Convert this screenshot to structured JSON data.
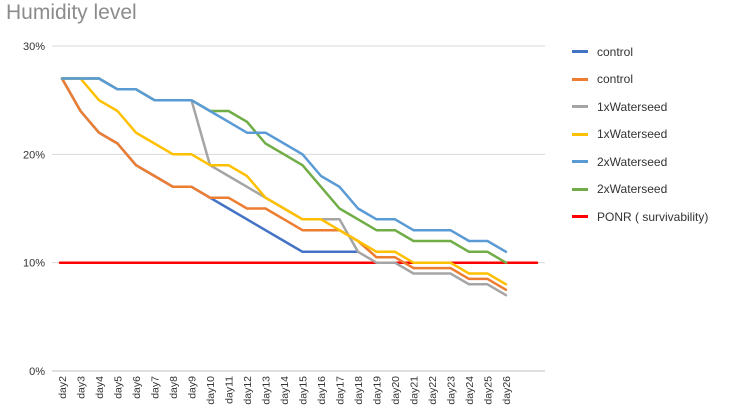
{
  "chart_data": {
    "type": "line",
    "title": "Humidity level",
    "xlabel": "",
    "ylabel": "",
    "ylim": [
      0,
      30
    ],
    "y_ticks": [
      "30%",
      "20%",
      "10%",
      "0%"
    ],
    "y_tick_values": [
      30,
      20,
      10,
      0
    ],
    "grid": "horizontal",
    "legend_position": "right",
    "categories": [
      "day2",
      "day3",
      "day4",
      "day5",
      "day6",
      "day7",
      "day8",
      "day9",
      "day10",
      "day11",
      "day12",
      "day13",
      "day14",
      "day15",
      "day16",
      "day17",
      "day18",
      "day19",
      "day20",
      "day21",
      "day22",
      "day23",
      "day24",
      "day25",
      "day26"
    ],
    "series": [
      {
        "name": "control",
        "color": "#4472c4",
        "values": [
          27,
          24,
          22,
          21,
          19,
          18,
          17,
          17,
          16,
          15,
          14,
          13,
          12,
          11,
          11,
          11,
          11,
          null,
          null,
          null,
          null,
          null,
          null,
          null,
          null
        ]
      },
      {
        "name": "control",
        "color": "#ed7d31",
        "values": [
          27,
          24,
          22,
          21,
          19,
          18,
          17,
          17,
          16,
          16,
          15,
          15,
          14,
          13,
          13,
          13,
          12,
          10.5,
          10.5,
          9.5,
          9.5,
          9.5,
          8.5,
          8.5,
          7.5
        ]
      },
      {
        "name": "1xWaterseed",
        "color": "#a5a5a5",
        "values": [
          27,
          27,
          27,
          26,
          26,
          25,
          25,
          25,
          19,
          18,
          17,
          16,
          15,
          14,
          14,
          14,
          11,
          10,
          10,
          9,
          9,
          9,
          8,
          8,
          7
        ]
      },
      {
        "name": "1xWaterseed",
        "color": "#ffc000",
        "values": [
          27,
          27,
          25,
          24,
          22,
          21,
          20,
          20,
          19,
          19,
          18,
          16,
          15,
          14,
          14,
          13,
          12,
          11,
          11,
          10,
          10,
          10,
          9,
          9,
          8
        ]
      },
      {
        "name": "2xWaterseed",
        "color": "#5b9bd5",
        "values": [
          27,
          27,
          27,
          26,
          26,
          25,
          25,
          25,
          24,
          23,
          22,
          22,
          21,
          20,
          18,
          17,
          15,
          14,
          14,
          13,
          13,
          13,
          12,
          12,
          11
        ]
      },
      {
        "name": "2xWaterseed",
        "color": "#70ad47",
        "values": [
          27,
          27,
          27,
          26,
          26,
          25,
          25,
          25,
          24,
          24,
          23,
          21,
          20,
          19,
          17,
          15,
          14,
          13,
          13,
          12,
          12,
          12,
          11,
          11,
          10
        ]
      },
      {
        "name": "PONR ( survivability)",
        "color": "#ff0000",
        "values": [
          10,
          10,
          10,
          10,
          10,
          10,
          10,
          10,
          10,
          10,
          10,
          10,
          10,
          10,
          10,
          10,
          10,
          10,
          10,
          10,
          10,
          10,
          10,
          10,
          10
        ]
      }
    ]
  }
}
